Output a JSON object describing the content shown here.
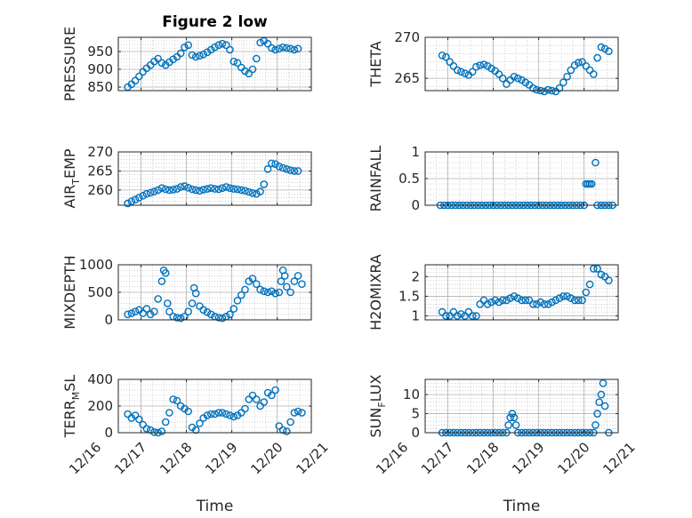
{
  "figure": {
    "title": "Figure 2 low"
  },
  "colors": {
    "marker": "#0072BD",
    "axis": "#262626",
    "grid": "#b0b0b0"
  },
  "chart_data": [
    {
      "type": "scatter",
      "id": "pressure",
      "ylabel": {
        "main": "PRESSURE"
      },
      "yticks": [
        850,
        900,
        950
      ],
      "ylim": [
        840,
        990
      ],
      "xlim": [
        "12/16 12:00",
        "12/20 18:00"
      ],
      "grid": true,
      "x": [
        "12/16 17:00",
        "12/16 19:00",
        "12/16 21:00",
        "12/16 23:00",
        "12/17 01:00",
        "12/17 03:00",
        "12/17 05:00",
        "12/17 07:00",
        "12/17 09:00",
        "12/17 11:00",
        "12/17 13:00",
        "12/17 15:00",
        "12/17 17:00",
        "12/17 19:00",
        "12/17 21:00",
        "12/17 23:00",
        "12/18 01:00",
        "12/18 03:00",
        "12/18 05:00",
        "12/18 07:00",
        "12/18 09:00",
        "12/18 11:00",
        "12/18 13:00",
        "12/18 15:00",
        "12/18 17:00",
        "12/18 19:00",
        "12/18 21:00",
        "12/18 23:00",
        "12/19 01:00",
        "12/19 03:00",
        "12/19 05:00",
        "12/19 07:00",
        "12/19 09:00",
        "12/19 11:00",
        "12/19 13:00",
        "12/19 15:00",
        "12/19 17:00",
        "12/19 19:00",
        "12/19 21:00",
        "12/19 23:00",
        "12/20 01:00",
        "12/20 03:00",
        "12/20 05:00",
        "12/20 07:00",
        "12/20 09:00",
        "12/20 11:00"
      ],
      "y": [
        850,
        858,
        868,
        880,
        893,
        903,
        912,
        922,
        930,
        918,
        912,
        920,
        928,
        935,
        945,
        962,
        968,
        940,
        935,
        938,
        942,
        948,
        955,
        962,
        968,
        972,
        968,
        955,
        922,
        918,
        905,
        895,
        888,
        900,
        930,
        975,
        980,
        972,
        960,
        955,
        958,
        962,
        960,
        958,
        955,
        958
      ]
    },
    {
      "type": "scatter",
      "id": "theta",
      "ylabel": {
        "main": "THETA"
      },
      "yticks": [
        265,
        270
      ],
      "ylim": [
        263.5,
        270
      ],
      "xlim": [
        "12/16 12:00",
        "12/20 18:00"
      ],
      "grid": true,
      "x": [
        "12/16 21:00",
        "12/16 23:00",
        "12/17 01:00",
        "12/17 03:00",
        "12/17 05:00",
        "12/17 07:00",
        "12/17 09:00",
        "12/17 11:00",
        "12/17 13:00",
        "12/17 15:00",
        "12/17 17:00",
        "12/17 19:00",
        "12/17 21:00",
        "12/17 23:00",
        "12/18 01:00",
        "12/18 03:00",
        "12/18 05:00",
        "12/18 07:00",
        "12/18 09:00",
        "12/18 11:00",
        "12/18 13:00",
        "12/18 15:00",
        "12/18 17:00",
        "12/18 19:00",
        "12/18 21:00",
        "12/18 23:00",
        "12/19 01:00",
        "12/19 03:00",
        "12/19 05:00",
        "12/19 07:00",
        "12/19 09:00",
        "12/19 11:00",
        "12/19 13:00",
        "12/19 15:00",
        "12/19 17:00",
        "12/19 19:00",
        "12/19 21:00",
        "12/19 23:00",
        "12/20 01:00",
        "12/20 03:00",
        "12/20 05:00",
        "12/20 07:00",
        "12/20 09:00",
        "12/20 11:00",
        "12/20 13:00"
      ],
      "y": [
        267.8,
        267.6,
        267.0,
        266.5,
        266.0,
        265.8,
        265.6,
        265.4,
        265.8,
        266.4,
        266.6,
        266.7,
        266.5,
        266.2,
        265.9,
        265.5,
        265.0,
        264.3,
        264.8,
        265.2,
        265.0,
        264.8,
        264.5,
        264.2,
        263.8,
        263.6,
        263.5,
        263.4,
        263.6,
        263.5,
        263.4,
        263.8,
        264.5,
        265.2,
        266.0,
        266.6,
        266.9,
        267.0,
        266.5,
        266.0,
        265.5,
        267.5,
        268.8,
        268.6,
        268.3
      ]
    },
    {
      "type": "scatter",
      "id": "air_temp",
      "ylabel": {
        "main": "AIR",
        "sub": "T",
        "rest": "EMP"
      },
      "yticks": [
        260,
        265,
        270
      ],
      "ylim": [
        256,
        270
      ],
      "xlim": [
        "12/16 12:00",
        "12/20 18:00"
      ],
      "grid": true,
      "x": [
        "12/16 17:00",
        "12/16 19:00",
        "12/16 21:00",
        "12/16 23:00",
        "12/17 01:00",
        "12/17 03:00",
        "12/17 05:00",
        "12/17 07:00",
        "12/17 09:00",
        "12/17 11:00",
        "12/17 13:00",
        "12/17 15:00",
        "12/17 17:00",
        "12/17 19:00",
        "12/17 21:00",
        "12/17 23:00",
        "12/18 01:00",
        "12/18 03:00",
        "12/18 05:00",
        "12/18 07:00",
        "12/18 09:00",
        "12/18 11:00",
        "12/18 13:00",
        "12/18 15:00",
        "12/18 17:00",
        "12/18 19:00",
        "12/18 21:00",
        "12/18 23:00",
        "12/19 01:00",
        "12/19 03:00",
        "12/19 05:00",
        "12/19 07:00",
        "12/19 09:00",
        "12/19 11:00",
        "12/19 13:00",
        "12/19 15:00",
        "12/19 17:00",
        "12/19 19:00",
        "12/19 21:00",
        "12/19 23:00",
        "12/20 01:00",
        "12/20 03:00",
        "12/20 05:00",
        "12/20 07:00",
        "12/20 09:00",
        "12/20 11:00"
      ],
      "y": [
        256.5,
        257.0,
        257.5,
        258.0,
        258.5,
        259.0,
        259.3,
        259.6,
        260.0,
        260.5,
        260.2,
        260.0,
        260.1,
        260.3,
        260.8,
        261.0,
        260.6,
        260.2,
        260.0,
        259.8,
        260.1,
        260.3,
        260.5,
        260.3,
        260.2,
        260.5,
        260.8,
        260.5,
        260.3,
        260.2,
        260.0,
        259.8,
        259.5,
        259.2,
        259.0,
        259.6,
        261.5,
        265.5,
        267.0,
        266.8,
        266.2,
        265.8,
        265.5,
        265.2,
        265.0,
        265.0
      ]
    },
    {
      "type": "scatter",
      "id": "rainfall",
      "ylabel": {
        "main": "RAINFALL"
      },
      "yticks": [
        0,
        0.5,
        1
      ],
      "ylim": [
        0,
        1
      ],
      "xlim": [
        "12/16 12:00",
        "12/20 18:00"
      ],
      "grid": true,
      "x": [
        "12/16 20:00",
        "12/16 22:00",
        "12/17 00:00",
        "12/17 02:00",
        "12/17 04:00",
        "12/17 06:00",
        "12/17 08:00",
        "12/17 10:00",
        "12/17 12:00",
        "12/17 14:00",
        "12/17 16:00",
        "12/17 18:00",
        "12/17 20:00",
        "12/17 22:00",
        "12/18 00:00",
        "12/18 02:00",
        "12/18 04:00",
        "12/18 06:00",
        "12/18 08:00",
        "12/18 10:00",
        "12/18 12:00",
        "12/18 14:00",
        "12/18 16:00",
        "12/18 18:00",
        "12/18 20:00",
        "12/18 22:00",
        "12/19 00:00",
        "12/19 02:00",
        "12/19 04:00",
        "12/19 06:00",
        "12/19 08:00",
        "12/19 10:00",
        "12/19 12:00",
        "12/19 14:00",
        "12/19 16:00",
        "12/19 18:00",
        "12/19 20:00",
        "12/19 22:00",
        "12/20 00:00",
        "12/20 01:00",
        "12/20 02:00",
        "12/20 03:00",
        "12/20 04:00",
        "12/20 06:00",
        "12/20 07:00",
        "12/20 09:00",
        "12/20 11:00",
        "12/20 13:00",
        "12/20 15:00"
      ],
      "y": [
        0,
        0,
        0,
        0,
        0,
        0,
        0,
        0,
        0,
        0,
        0,
        0,
        0,
        0,
        0,
        0,
        0,
        0,
        0,
        0,
        0,
        0,
        0,
        0,
        0,
        0,
        0,
        0,
        0,
        0,
        0,
        0,
        0,
        0,
        0,
        0,
        0,
        0,
        0,
        0.4,
        0.4,
        0.4,
        0.4,
        0.8,
        0,
        0,
        0,
        0,
        0
      ]
    },
    {
      "type": "scatter",
      "id": "mixdepth",
      "ylabel": {
        "main": "MIXDEPTH"
      },
      "yticks": [
        0,
        500,
        1000
      ],
      "ylim": [
        0,
        1000
      ],
      "xlim": [
        "12/16 12:00",
        "12/20 18:00"
      ],
      "grid": true,
      "x": [
        "12/16 17:00",
        "12/16 19:00",
        "12/16 21:00",
        "12/16 23:00",
        "12/17 01:00",
        "12/17 03:00",
        "12/17 05:00",
        "12/17 07:00",
        "12/17 09:00",
        "12/17 11:00",
        "12/17 12:00",
        "12/17 13:00",
        "12/17 14:00",
        "12/17 15:00",
        "12/17 17:00",
        "12/17 19:00",
        "12/17 21:00",
        "12/17 23:00",
        "12/18 01:00",
        "12/18 03:00",
        "12/18 04:00",
        "12/18 05:00",
        "12/18 07:00",
        "12/18 09:00",
        "12/18 11:00",
        "12/18 13:00",
        "12/18 15:00",
        "12/18 17:00",
        "12/18 19:00",
        "12/18 21:00",
        "12/18 23:00",
        "12/19 01:00",
        "12/19 03:00",
        "12/19 05:00",
        "12/19 07:00",
        "12/19 09:00",
        "12/19 11:00",
        "12/19 13:00",
        "12/19 15:00",
        "12/19 17:00",
        "12/19 19:00",
        "12/19 21:00",
        "12/19 23:00",
        "12/20 01:00",
        "12/20 02:00",
        "12/20 03:00",
        "12/20 04:00",
        "12/20 05:00",
        "12/20 07:00",
        "12/20 09:00",
        "12/20 11:00",
        "12/20 13:00"
      ],
      "y": [
        100,
        120,
        150,
        180,
        120,
        200,
        100,
        150,
        380,
        700,
        900,
        850,
        300,
        150,
        60,
        40,
        30,
        60,
        150,
        300,
        580,
        480,
        250,
        180,
        140,
        100,
        60,
        40,
        30,
        60,
        100,
        200,
        350,
        450,
        550,
        700,
        750,
        650,
        550,
        520,
        500,
        520,
        480,
        500,
        700,
        900,
        800,
        600,
        500,
        700,
        800,
        650
      ]
    },
    {
      "type": "scatter",
      "id": "h2omixra",
      "ylabel": {
        "main": "H2OMIXRA"
      },
      "yticks": [
        1,
        1.5,
        2
      ],
      "ylim": [
        0.9,
        2.3
      ],
      "xlim": [
        "12/16 12:00",
        "12/20 18:00"
      ],
      "grid": true,
      "x": [
        "12/16 21:00",
        "12/16 23:00",
        "12/17 01:00",
        "12/17 03:00",
        "12/17 05:00",
        "12/17 07:00",
        "12/17 09:00",
        "12/17 11:00",
        "12/17 13:00",
        "12/17 15:00",
        "12/17 17:00",
        "12/17 19:00",
        "12/17 21:00",
        "12/17 23:00",
        "12/18 01:00",
        "12/18 03:00",
        "12/18 05:00",
        "12/18 07:00",
        "12/18 09:00",
        "12/18 11:00",
        "12/18 13:00",
        "12/18 15:00",
        "12/18 17:00",
        "12/18 19:00",
        "12/18 21:00",
        "12/18 23:00",
        "12/19 01:00",
        "12/19 03:00",
        "12/19 05:00",
        "12/19 07:00",
        "12/19 09:00",
        "12/19 11:00",
        "12/19 13:00",
        "12/19 15:00",
        "12/19 17:00",
        "12/19 19:00",
        "12/19 21:00",
        "12/19 23:00",
        "12/20 01:00",
        "12/20 03:00",
        "12/20 05:00",
        "12/20 07:00",
        "12/20 09:00",
        "12/20 11:00",
        "12/20 13:00"
      ],
      "y": [
        1.1,
        1.0,
        1.0,
        1.1,
        1.0,
        1.05,
        1.0,
        1.1,
        1.0,
        1.0,
        1.3,
        1.4,
        1.3,
        1.35,
        1.4,
        1.35,
        1.4,
        1.4,
        1.45,
        1.5,
        1.45,
        1.4,
        1.4,
        1.4,
        1.3,
        1.3,
        1.35,
        1.3,
        1.3,
        1.35,
        1.4,
        1.45,
        1.5,
        1.5,
        1.45,
        1.4,
        1.4,
        1.4,
        1.6,
        1.8,
        2.2,
        2.2,
        2.05,
        2.0,
        1.9
      ]
    },
    {
      "type": "scatter",
      "id": "terr_msl",
      "ylabel": {
        "main": "TERR",
        "sub": "M",
        "rest": "SL"
      },
      "yticks": [
        0,
        200,
        400
      ],
      "ylim": [
        0,
        400
      ],
      "xlim": [
        "12/16 12:00",
        "12/20 18:00"
      ],
      "grid": true,
      "x": [
        "12/16 17:00",
        "12/16 19:00",
        "12/16 21:00",
        "12/16 23:00",
        "12/17 01:00",
        "12/17 03:00",
        "12/17 05:00",
        "12/17 07:00",
        "12/17 09:00",
        "12/17 11:00",
        "12/17 13:00",
        "12/17 15:00",
        "12/17 17:00",
        "12/17 19:00",
        "12/17 21:00",
        "12/17 23:00",
        "12/18 01:00",
        "12/18 03:00",
        "12/18 05:00",
        "12/18 07:00",
        "12/18 09:00",
        "12/18 11:00",
        "12/18 13:00",
        "12/18 15:00",
        "12/18 17:00",
        "12/18 19:00",
        "12/18 21:00",
        "12/18 23:00",
        "12/19 01:00",
        "12/19 03:00",
        "12/19 05:00",
        "12/19 07:00",
        "12/19 09:00",
        "12/19 11:00",
        "12/19 13:00",
        "12/19 15:00",
        "12/19 17:00",
        "12/19 19:00",
        "12/19 21:00",
        "12/19 23:00",
        "12/20 01:00",
        "12/20 03:00",
        "12/20 05:00",
        "12/20 07:00",
        "12/20 09:00",
        "12/20 11:00",
        "12/20 13:00"
      ],
      "y": [
        140,
        110,
        130,
        100,
        60,
        30,
        20,
        5,
        0,
        10,
        80,
        150,
        250,
        240,
        200,
        180,
        160,
        40,
        20,
        70,
        110,
        130,
        140,
        140,
        150,
        150,
        140,
        130,
        120,
        130,
        150,
        180,
        250,
        280,
        250,
        200,
        230,
        300,
        280,
        320,
        50,
        20,
        10,
        80,
        150,
        160,
        150
      ]
    },
    {
      "type": "scatter",
      "id": "sun_flux",
      "ylabel": {
        "main": "SUN",
        "sub": "F",
        "rest": "LUX"
      },
      "yticks": [
        0,
        5,
        10
      ],
      "ylim": [
        0,
        14
      ],
      "xlim": [
        "12/16 12:00",
        "12/20 18:00"
      ],
      "grid": true,
      "x": [
        "12/16 21:00",
        "12/16 23:00",
        "12/17 01:00",
        "12/17 03:00",
        "12/17 05:00",
        "12/17 07:00",
        "12/17 09:00",
        "12/17 11:00",
        "12/17 13:00",
        "12/17 15:00",
        "12/17 17:00",
        "12/17 19:00",
        "12/17 21:00",
        "12/17 23:00",
        "12/18 01:00",
        "12/18 03:00",
        "12/18 05:00",
        "12/18 07:00",
        "12/18 08:00",
        "12/18 09:00",
        "12/18 10:00",
        "12/18 11:00",
        "12/18 12:00",
        "12/18 13:00",
        "12/18 15:00",
        "12/18 17:00",
        "12/18 19:00",
        "12/18 21:00",
        "12/18 23:00",
        "12/19 01:00",
        "12/19 03:00",
        "12/19 05:00",
        "12/19 07:00",
        "12/19 09:00",
        "12/19 11:00",
        "12/19 13:00",
        "12/19 15:00",
        "12/19 17:00",
        "12/19 19:00",
        "12/19 21:00",
        "12/19 23:00",
        "12/20 01:00",
        "12/20 03:00",
        "12/20 05:00",
        "12/20 06:00",
        "12/20 07:00",
        "12/20 08:00",
        "12/20 09:00",
        "12/20 10:00",
        "12/20 11:00",
        "12/20 13:00"
      ],
      "y": [
        0,
        0,
        0,
        0,
        0,
        0,
        0,
        0,
        0,
        0,
        0,
        0,
        0,
        0,
        0,
        0,
        0,
        0,
        2,
        4,
        5,
        4,
        2,
        0,
        0,
        0,
        0,
        0,
        0,
        0,
        0,
        0,
        0,
        0,
        0,
        0,
        0,
        0,
        0,
        0,
        0,
        0,
        0,
        0,
        2,
        5,
        8,
        10,
        13,
        7,
        0
      ]
    }
  ],
  "xaxis": {
    "ticks": [
      "12/16",
      "12/17",
      "12/18",
      "12/19",
      "12/20",
      "12/21"
    ],
    "label": "Time"
  }
}
